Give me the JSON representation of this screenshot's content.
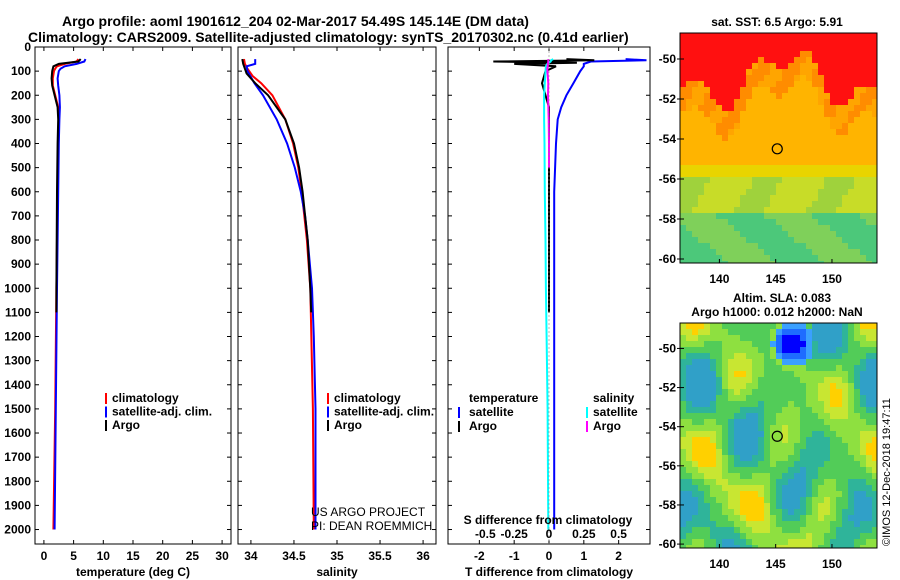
{
  "header": {
    "title_line1": "Argo profile: aoml 1901612_204 02-Mar-2017 54.49S 145.14E (DM data)",
    "title_line2": "Climatology: CARS2009. Satellite-adjusted climatology: synTS_20170302.nc (0.41d earlier)"
  },
  "credits": {
    "project": "US ARGO PROJECT",
    "pi": "PI: DEAN ROEMMICH",
    "stamp": "©IMOS 12-Dec-2018 19:47:11"
  },
  "colors": {
    "climatology": "#ff0000",
    "satellite": "#0000ff",
    "argo": "#000000",
    "salinity_satellite": "#00ffff",
    "salinity_argo": "#ff00ff"
  },
  "chart_data": [
    {
      "type": "line",
      "id": "temperature",
      "xlabel": "temperature (deg C)",
      "ylabel": "",
      "xlim": [
        -1.5,
        31.5
      ],
      "ylim": [
        2060,
        0
      ],
      "xticks": [
        0,
        5,
        10,
        15,
        20,
        25,
        30
      ],
      "xtick_labels": [
        "0",
        "5",
        "10",
        "15",
        "20",
        "25",
        "30"
      ],
      "yticks": [
        0,
        100,
        200,
        300,
        400,
        500,
        600,
        700,
        800,
        900,
        1000,
        1100,
        1200,
        1300,
        1400,
        1500,
        1600,
        1700,
        1800,
        1900,
        2000
      ],
      "ytick_labels": [
        "0",
        "100",
        "200",
        "300",
        "400",
        "500",
        "600",
        "700",
        "800",
        "900",
        "1000",
        "1100",
        "1200",
        "1300",
        "1400",
        "1500",
        "1600",
        "1700",
        "1800",
        "1900",
        "2000"
      ],
      "legend": [
        "climatology",
        "satellite-adj. clim.",
        "Argo"
      ],
      "series": [
        {
          "name": "climatology",
          "color": "#ff0000",
          "depth": [
            50,
            60,
            70,
            80,
            90,
            100,
            130,
            160,
            200,
            250,
            300,
            400,
            600,
            1000,
            1500,
            2000
          ],
          "values": [
            5.8,
            5.5,
            3.5,
            2.2,
            1.9,
            1.7,
            1.5,
            1.5,
            1.9,
            2.4,
            2.5,
            2.4,
            2.3,
            2.1,
            1.9,
            1.6
          ]
        },
        {
          "name": "satellite-adj. clim.",
          "color": "#0000ff",
          "depth": [
            50,
            60,
            70,
            80,
            90,
            100,
            130,
            160,
            200,
            250,
            300,
            400,
            600,
            1000,
            1500,
            2000
          ],
          "values": [
            7.0,
            6.8,
            5.5,
            3.5,
            2.8,
            2.5,
            2.3,
            2.4,
            2.6,
            2.7,
            2.6,
            2.5,
            2.4,
            2.2,
            2.0,
            1.8
          ]
        },
        {
          "name": "Argo",
          "color": "#000000",
          "depth": [
            50,
            60,
            70,
            80,
            90,
            100,
            130,
            160,
            200,
            250,
            300,
            400,
            600,
            1000,
            1100
          ],
          "values": [
            6.2,
            5.8,
            2.5,
            1.6,
            1.5,
            1.4,
            1.3,
            1.4,
            1.8,
            2.3,
            2.4,
            2.3,
            2.2,
            2.1,
            2.1
          ]
        }
      ]
    },
    {
      "type": "line",
      "id": "salinity",
      "xlabel": "salinity",
      "ylabel": "",
      "xlim": [
        33.85,
        36.15
      ],
      "ylim": [
        2060,
        0
      ],
      "xticks": [
        34,
        34.5,
        35,
        35.5,
        36
      ],
      "xtick_labels": [
        "34",
        "34.5",
        "35",
        "35.5",
        "36"
      ],
      "legend": [
        "climatology",
        "satellite-adj. clim.",
        "Argo"
      ],
      "series": [
        {
          "name": "climatology",
          "color": "#ff0000",
          "depth": [
            50,
            70,
            90,
            120,
            150,
            200,
            300,
            400,
            500,
            600,
            700,
            800,
            1000,
            1500,
            2000
          ],
          "values": [
            33.92,
            33.93,
            33.96,
            34.02,
            34.12,
            34.25,
            34.4,
            34.49,
            34.55,
            34.59,
            34.62,
            34.65,
            34.69,
            34.72,
            34.73
          ]
        },
        {
          "name": "satellite-adj. clim.",
          "color": "#0000ff",
          "depth": [
            50,
            70,
            80,
            100,
            150,
            200,
            300,
            400,
            500,
            600,
            700,
            800,
            1000,
            1200,
            1500,
            2000
          ],
          "values": [
            34.05,
            34.05,
            33.95,
            33.96,
            34.04,
            34.14,
            34.3,
            34.42,
            34.51,
            34.58,
            34.63,
            34.66,
            34.71,
            34.73,
            34.75,
            34.75
          ]
        },
        {
          "name": "Argo",
          "color": "#000000",
          "depth": [
            50,
            70,
            90,
            110,
            150,
            200,
            300,
            400,
            500,
            600,
            700,
            800,
            1000,
            1100
          ],
          "values": [
            33.9,
            33.91,
            33.93,
            33.95,
            34.05,
            34.2,
            34.4,
            34.5,
            34.56,
            34.6,
            34.63,
            34.66,
            34.69,
            34.7
          ]
        }
      ]
    },
    {
      "type": "line",
      "id": "difference",
      "xlabel": "T difference from climatology",
      "xlabel_top": "S difference from climatology",
      "xlim": [
        -2.9,
        2.9
      ],
      "ylim": [
        2060,
        0
      ],
      "xticks": [
        -2,
        -1,
        0,
        1,
        2
      ],
      "xtick_labels": [
        "-2",
        "-1",
        "0",
        "1",
        "2"
      ],
      "top_tick_labels": [
        "-0.5",
        "-0.25",
        "0",
        "0.25",
        "0.5"
      ],
      "legend_left_title": "temperature",
      "legend_left": [
        "satellite",
        "Argo"
      ],
      "legend_right_title": "salinity",
      "legend_right": [
        "satellite",
        "Argo"
      ],
      "series": [
        {
          "name": "temperature satellite",
          "color": "#0000ff",
          "depth": [
            50,
            55,
            60,
            70,
            80,
            100,
            150,
            200,
            250,
            300,
            400,
            600,
            1000,
            1500,
            2000
          ],
          "values": [
            2.2,
            2.8,
            1.2,
            1.0,
            1.0,
            0.9,
            0.7,
            0.5,
            0.35,
            0.25,
            0.2,
            0.15,
            0.15,
            0.15,
            0.15
          ]
        },
        {
          "name": "temperature Argo",
          "color": "#000000",
          "depth": [
            50,
            55,
            60,
            65,
            70,
            80,
            100,
            150,
            200,
            250,
            300,
            400,
            600,
            1000,
            1100
          ],
          "values": [
            0.5,
            1.3,
            -1.6,
            0.8,
            -1.0,
            0.2,
            -0.1,
            -0.2,
            -0.1,
            0.0,
            0.0,
            0.0,
            0.0,
            0.0,
            0.0
          ]
        },
        {
          "name": "salinity satellite",
          "color": "#00ffff",
          "depth": [
            50,
            55,
            60,
            70,
            80,
            100,
            200,
            300,
            400,
            600,
            800,
            1000,
            1200,
            1500,
            2000
          ],
          "values": [
            0.12,
            0.06,
            0.05,
            -0.05,
            -0.09,
            -0.1,
            -0.14,
            -0.14,
            -0.13,
            -0.12,
            -0.1,
            -0.09,
            -0.07,
            -0.04,
            -0.02
          ]
        },
        {
          "name": "salinity Argo",
          "color": "#ff00ff",
          "depth": [
            50,
            60,
            70,
            90,
            110,
            150,
            200,
            300,
            400,
            500
          ],
          "values": [
            -0.02,
            -0.02,
            -0.03,
            -0.05,
            -0.04,
            -0.02,
            -0.03,
            -0.01,
            0.0,
            0.0
          ]
        }
      ]
    },
    {
      "type": "heatmap",
      "id": "sst_map",
      "title": "sat. SST: 6.5 Argo: 5.91",
      "xlim": [
        136.5,
        154
      ],
      "ylim": [
        -60.2,
        -48.7
      ],
      "xticks": [
        140,
        145,
        150
      ],
      "xtick_labels": [
        "140",
        "145",
        "150"
      ],
      "yticks": [
        -50,
        -52,
        -54,
        -56,
        -58,
        -60
      ],
      "ytick_labels": [
        "-50",
        "-52",
        "-54",
        "-56",
        "-58",
        "-60"
      ],
      "marker": {
        "lon": 145.14,
        "lat": -54.49
      }
    },
    {
      "type": "heatmap",
      "id": "sla_map",
      "title": "Altim. SLA: 0.083",
      "subtitle": "Argo h1000: 0.012 h2000: NaN",
      "xlim": [
        136.5,
        154
      ],
      "ylim": [
        -60.2,
        -48.7
      ],
      "xticks": [
        140,
        145,
        150
      ],
      "xtick_labels": [
        "140",
        "145",
        "150"
      ],
      "yticks": [
        -50,
        -52,
        -54,
        -56,
        -58,
        -60
      ],
      "ytick_labels": [
        "-50",
        "-52",
        "-54",
        "-56",
        "-58",
        "-60"
      ],
      "marker": {
        "lon": 145.14,
        "lat": -54.49
      }
    }
  ]
}
